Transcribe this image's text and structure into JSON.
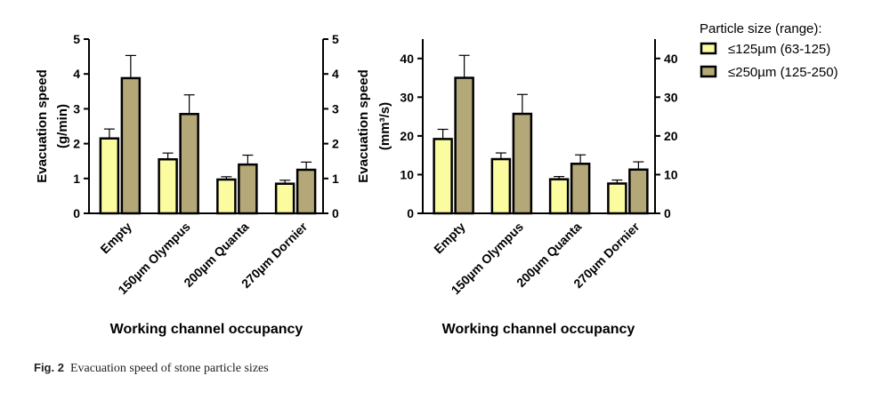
{
  "legend": {
    "title": "Particle size (range):",
    "colors": [
      "#fbfba0",
      "#b5a878"
    ]
  },
  "caption": {
    "label": "Fig. 2",
    "text": "Evacuation speed of stone particle sizes"
  },
  "chart_data": [
    {
      "type": "bar",
      "ylabel_line1": "Evacuation speed",
      "ylabel_line2": "(g/min)",
      "xlabel": "Working channel occupancy",
      "categories": [
        "Empty",
        "150µm Olympus",
        "200µm Quanta",
        "270µm Dornier"
      ],
      "ylim": [
        0,
        5
      ],
      "yticks": [
        0,
        1,
        2,
        3,
        4,
        5
      ],
      "series": [
        {
          "name": "≤125µm (63-125)",
          "values": [
            2.15,
            1.55,
            0.97,
            0.85
          ],
          "errors": [
            0.27,
            0.18,
            0.08,
            0.1
          ]
        },
        {
          "name": "≤250µm (125-250)",
          "values": [
            3.88,
            2.85,
            1.4,
            1.25
          ],
          "errors": [
            0.65,
            0.55,
            0.27,
            0.22
          ]
        }
      ]
    },
    {
      "type": "bar",
      "ylabel_line1": "Evacuation speed",
      "ylabel_line2": "(mm³/s)",
      "xlabel": "Working channel occupancy",
      "categories": [
        "Empty",
        "150µm Olympus",
        "200µm Quanta",
        "270µm Dornier"
      ],
      "ylim": [
        0,
        45
      ],
      "yticks": [
        0,
        10,
        20,
        30,
        40
      ],
      "series": [
        {
          "name": "≤125µm (63-125)",
          "values": [
            19.2,
            14.0,
            8.8,
            7.7
          ],
          "errors": [
            2.5,
            1.6,
            0.7,
            0.9
          ]
        },
        {
          "name": "≤250µm (125-250)",
          "values": [
            35.0,
            25.7,
            12.8,
            11.3
          ],
          "errors": [
            5.8,
            5.0,
            2.3,
            2.0
          ]
        }
      ]
    }
  ]
}
